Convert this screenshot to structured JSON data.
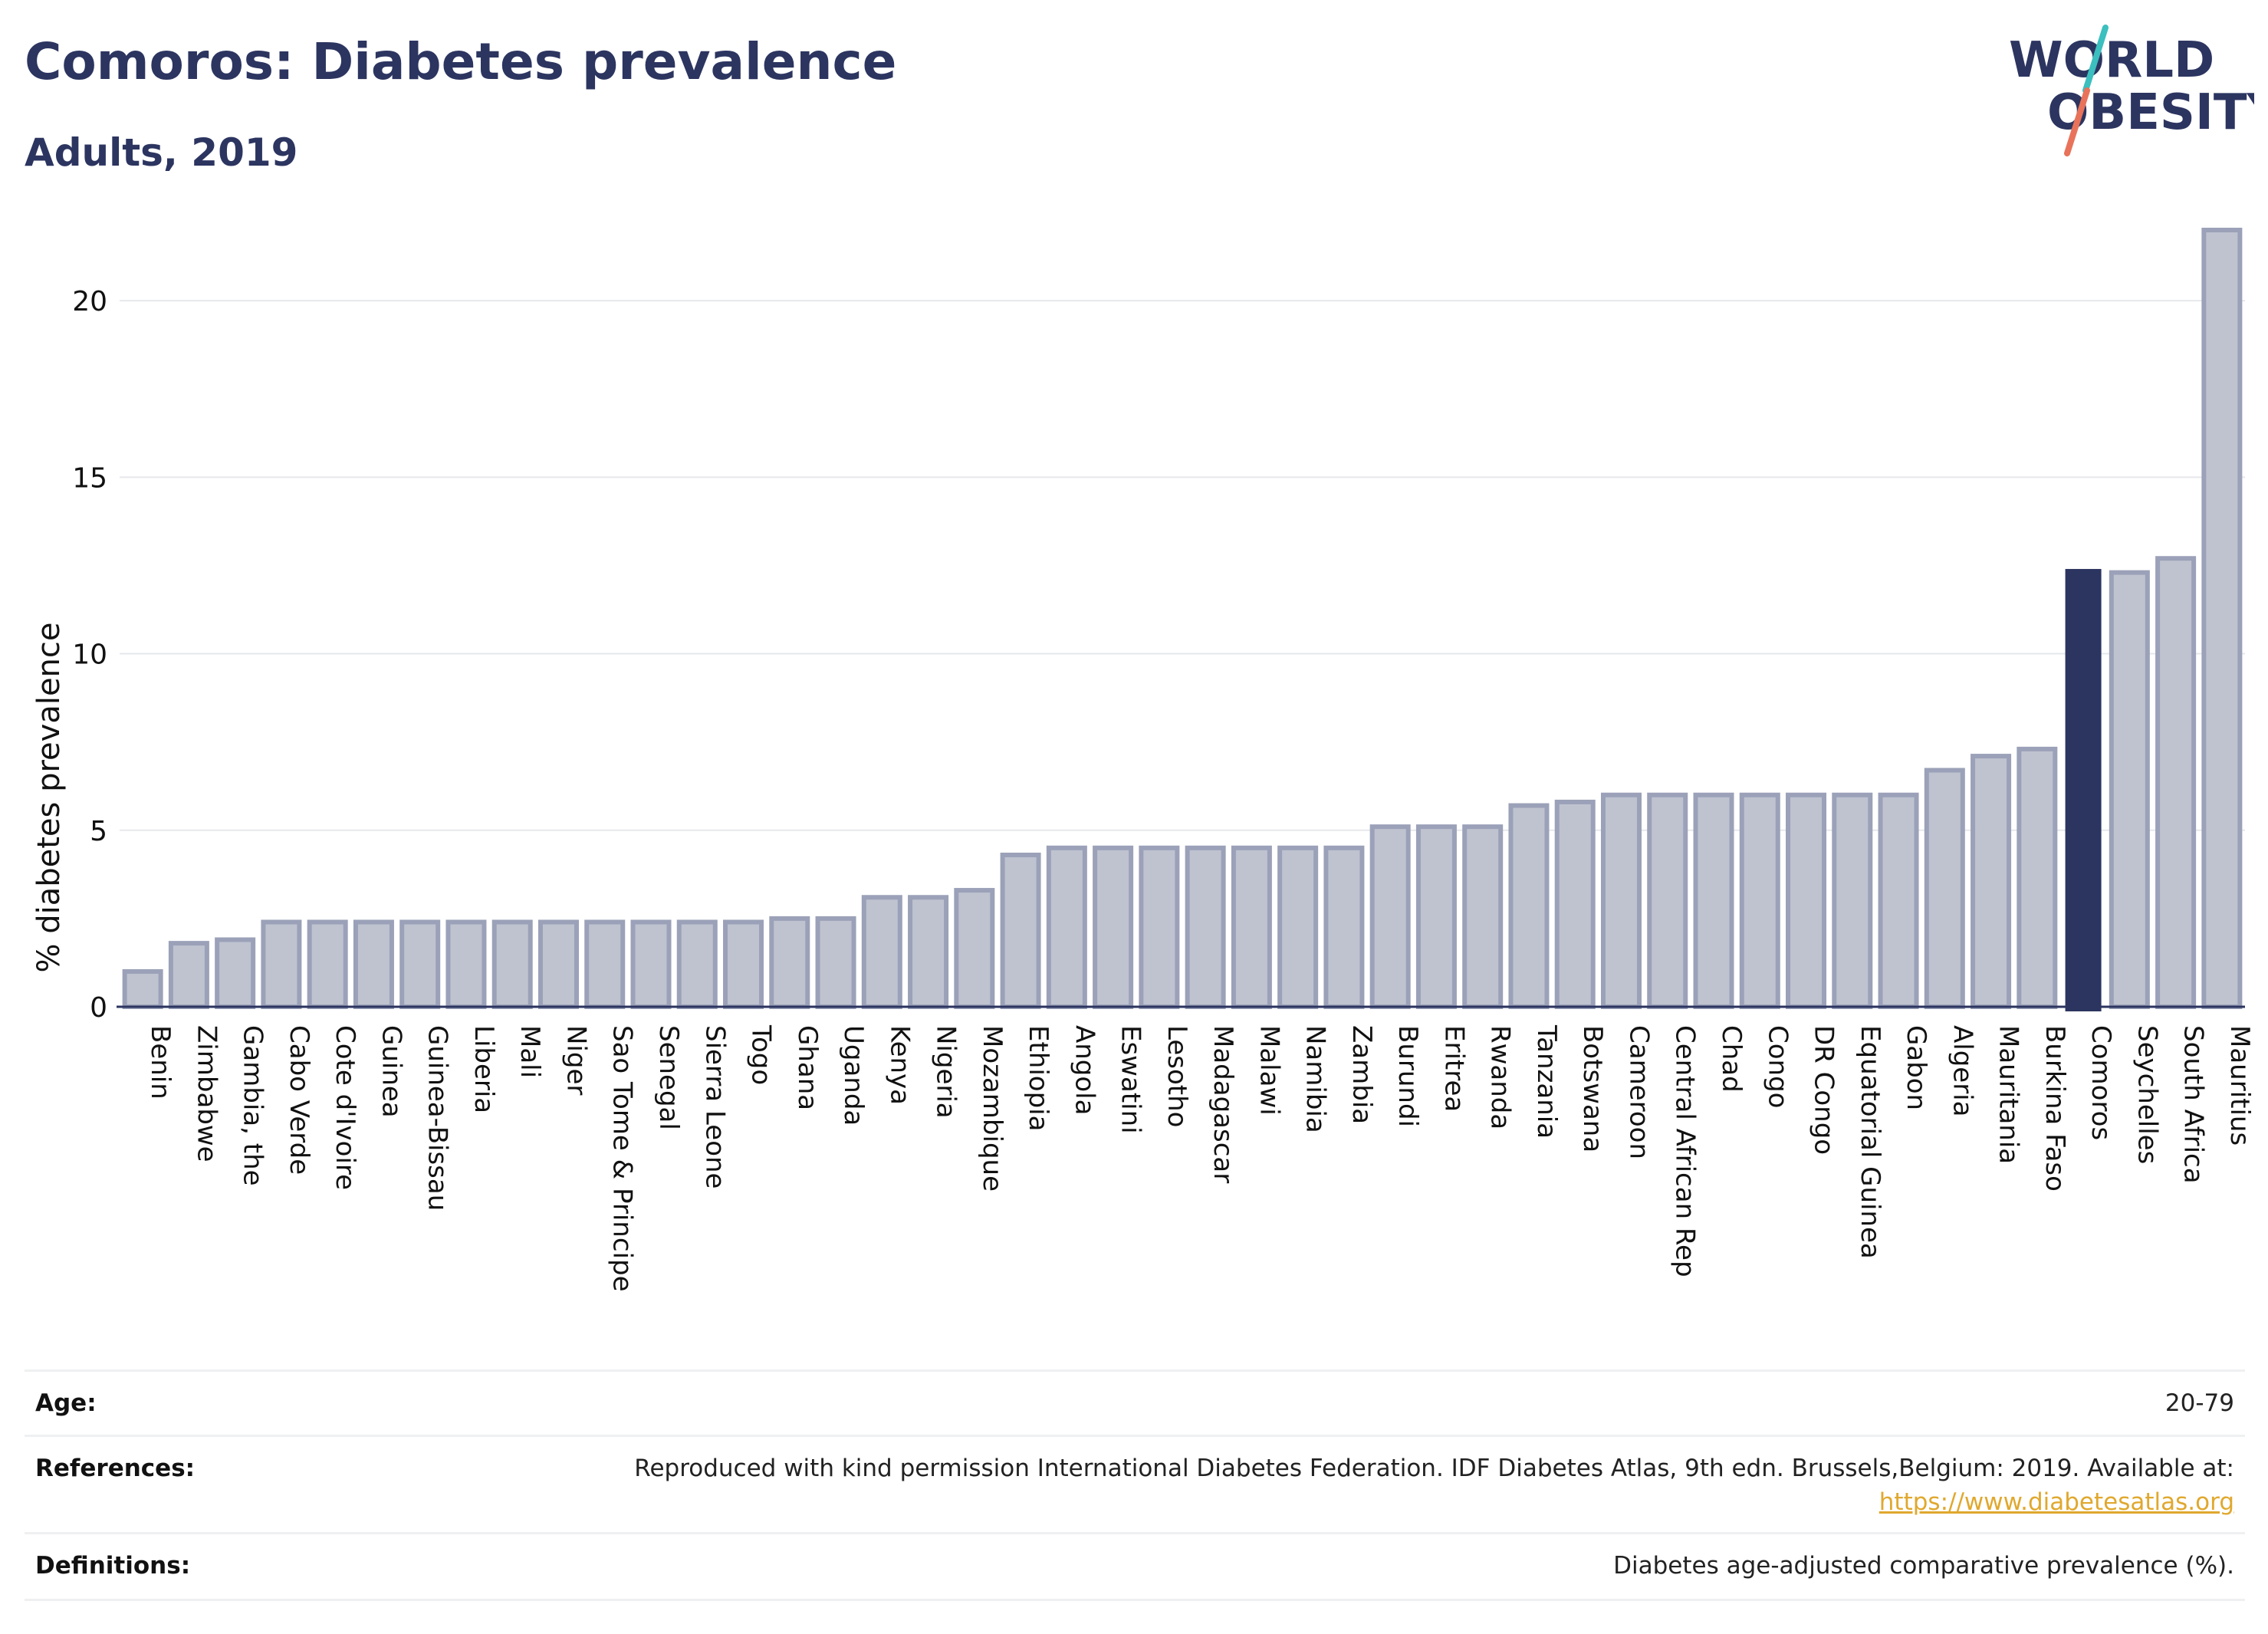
{
  "header": {
    "title": "Comoros: Diabetes prevalence",
    "subtitle": "Adults, 2019"
  },
  "logo": {
    "line1": "WORLD",
    "line2": "OBESITY",
    "slash_color_top": "#3bbfbf",
    "slash_color_bottom": "#e8735a"
  },
  "colors": {
    "bar": "#bfc3d0",
    "bar_edge": "#9ba1b8",
    "highlight": "#2c3560",
    "grid": "#e6e8ec",
    "axis": "#2c3560"
  },
  "chart_data": {
    "type": "bar",
    "ylabel": "% diabetes prevalence",
    "ylim": [
      0,
      22
    ],
    "yticks": [
      0,
      5,
      10,
      15,
      20
    ],
    "highlight": "Comoros",
    "grid": true,
    "categories": [
      "Benin",
      "Zimbabwe",
      "Gambia, the",
      "Cabo Verde",
      "Cote d'Ivoire",
      "Guinea",
      "Guinea-Bissau",
      "Liberia",
      "Mali",
      "Niger",
      "Sao Tome & Principe",
      "Senegal",
      "Sierra Leone",
      "Togo",
      "Ghana",
      "Uganda",
      "Kenya",
      "Nigeria",
      "Mozambique",
      "Ethiopia",
      "Angola",
      "Eswatini",
      "Lesotho",
      "Madagascar",
      "Malawi",
      "Namibia",
      "Zambia",
      "Burundi",
      "Eritrea",
      "Rwanda",
      "Tanzania",
      "Botswana",
      "Cameroon",
      "Central African Rep",
      "Chad",
      "Congo",
      "DR Congo",
      "Equatorial Guinea",
      "Gabon",
      "Algeria",
      "Mauritania",
      "Burkina Faso",
      "Comoros",
      "Seychelles",
      "South Africa",
      "Mauritius"
    ],
    "values": [
      1.0,
      1.8,
      1.9,
      2.4,
      2.4,
      2.4,
      2.4,
      2.4,
      2.4,
      2.4,
      2.4,
      2.4,
      2.4,
      2.4,
      2.5,
      2.5,
      3.1,
      3.1,
      3.3,
      4.3,
      4.5,
      4.5,
      4.5,
      4.5,
      4.5,
      4.5,
      4.5,
      5.1,
      5.1,
      5.1,
      5.7,
      5.8,
      6.0,
      6.0,
      6.0,
      6.0,
      6.0,
      6.0,
      6.0,
      6.7,
      7.1,
      7.3,
      12.4,
      12.3,
      12.7,
      22.0
    ]
  },
  "info_table": {
    "age_label": "Age:",
    "age_value": "20-79",
    "references_label": "References:",
    "references_text": "Reproduced with kind permission International Diabetes Federation. IDF Diabetes Atlas, 9th edn. Brussels,Belgium: 2019. Available at:",
    "references_link": "https://www.diabetesatlas.org",
    "definitions_label": "Definitions:",
    "definitions_value": "Diabetes age-adjusted comparative prevalence (%)."
  }
}
